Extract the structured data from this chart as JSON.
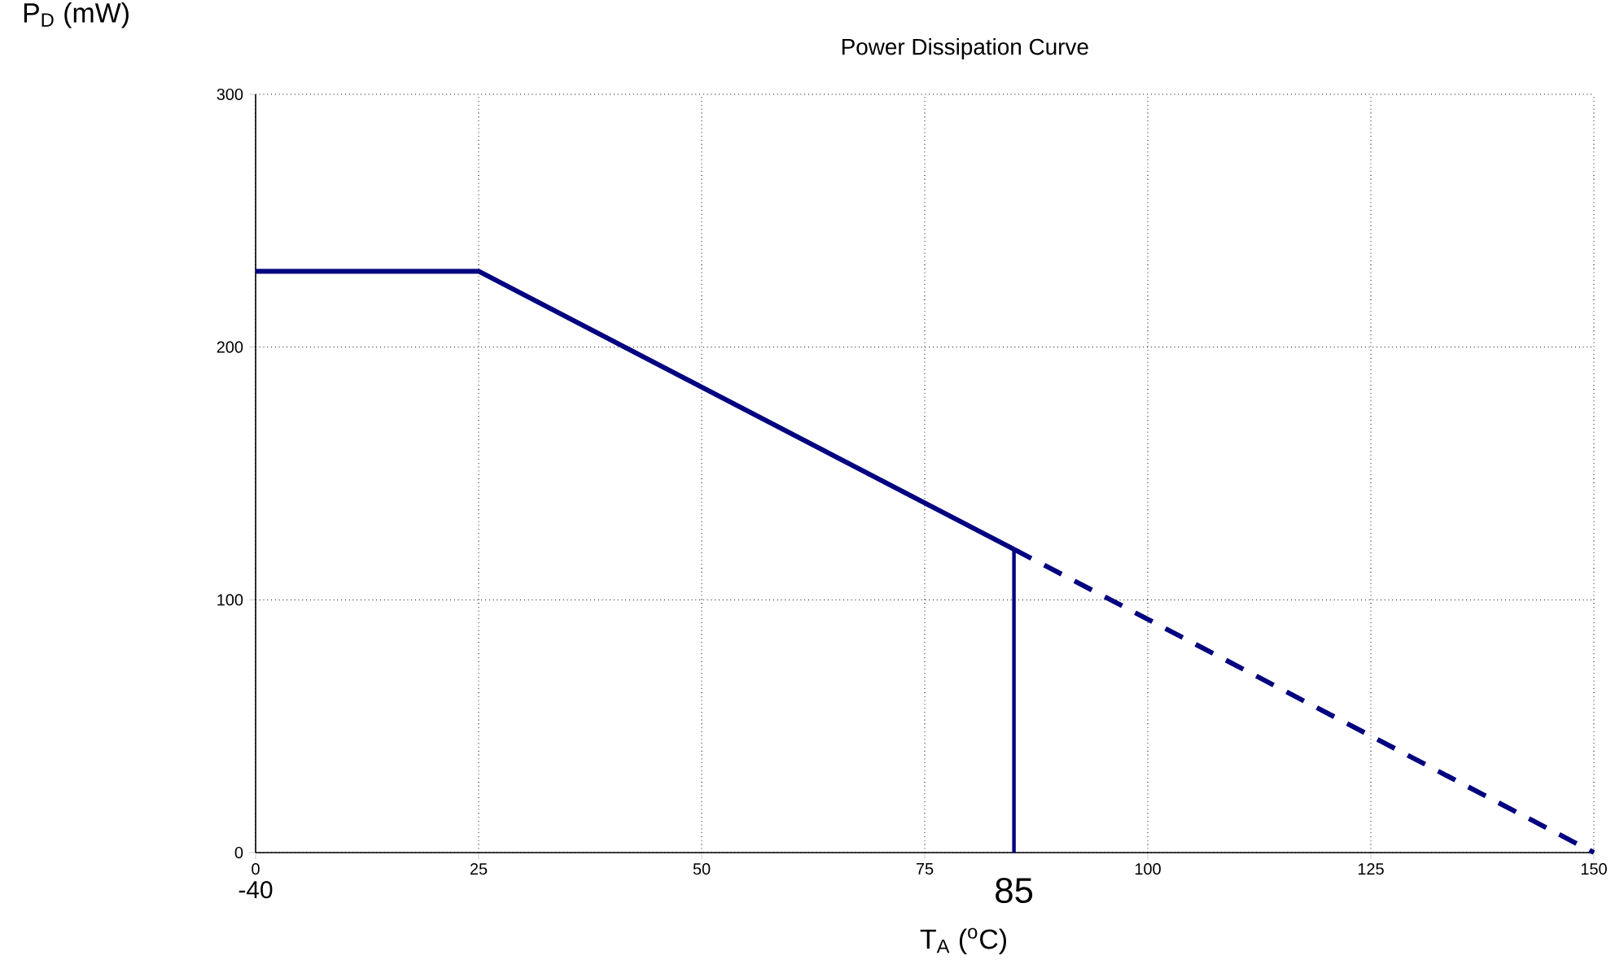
{
  "chart_data": {
    "type": "line",
    "title": "Power Dissipation Curve",
    "xlabel": "T$_{A}$ ($^{o}$C)",
    "ylabel": "P$_{D}$ (mW)",
    "xlim": [
      0,
      150
    ],
    "ylim": [
      0,
      300
    ],
    "xticks": [
      0,
      25,
      50,
      75,
      100,
      125,
      150
    ],
    "yticks": [
      0,
      100,
      200,
      300
    ],
    "grid": true,
    "marker": "none",
    "series": [
      {
        "color": "#000080",
        "x": [
          0,
          25,
          85
        ],
        "values": [
          230,
          230,
          120
        ],
        "line_style": "solid"
      },
      {
        "color": "#000080",
        "x": [
          85,
          150
        ],
        "values": [
          120,
          0
        ],
        "line_style": "dashed"
      },
      {
        "color": "#000080",
        "x": [
          85,
          85
        ],
        "values": [
          120,
          0
        ],
        "line_style": "solid"
      }
    ],
    "annotations": [
      "-40",
      {
        "text": "85",
        "x": 85,
        "y": 0
      }
    ]
  }
}
